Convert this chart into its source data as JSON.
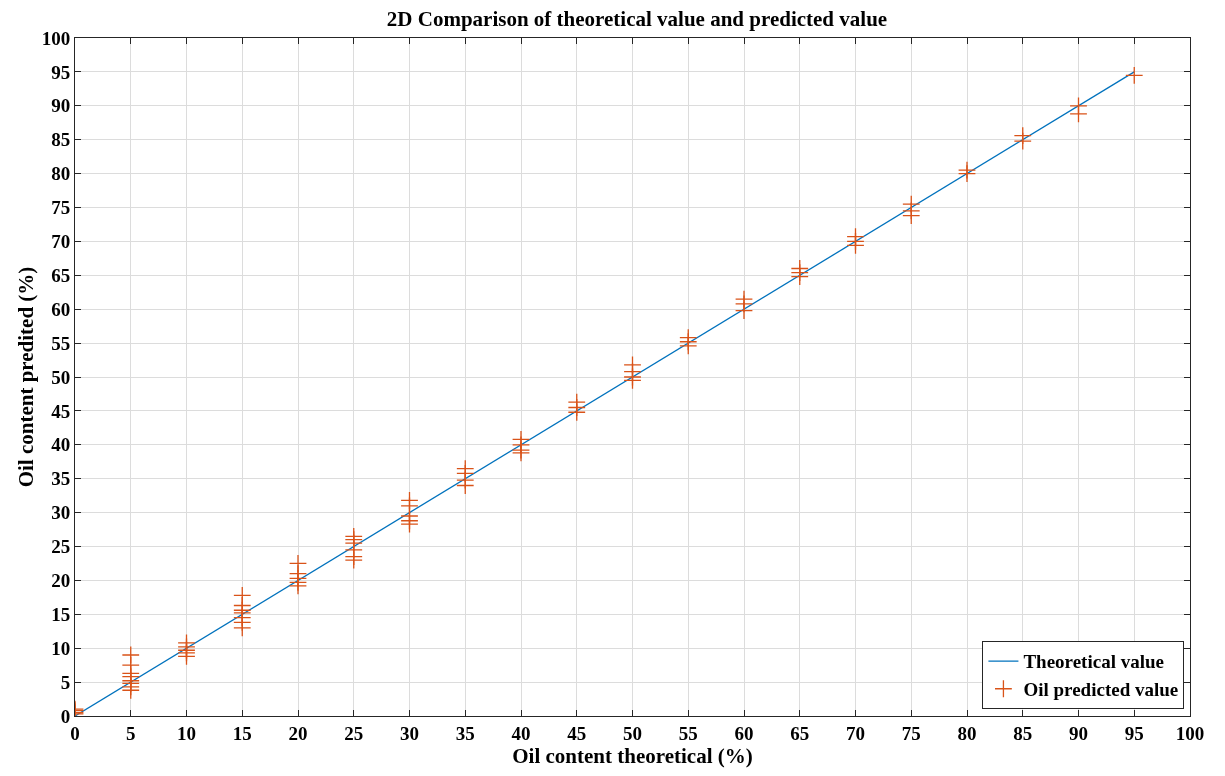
{
  "chart_data": {
    "type": "scatter",
    "title": "2D Comparison of theoretical value and predicted value",
    "xlabel": "Oil content theoretical (%)",
    "ylabel": "Oil content predited (%)",
    "xlim": [
      0,
      100
    ],
    "ylim": [
      0,
      100
    ],
    "xticks": [
      0,
      5,
      10,
      15,
      20,
      25,
      30,
      35,
      40,
      45,
      50,
      55,
      60,
      65,
      70,
      75,
      80,
      85,
      90,
      95,
      100
    ],
    "yticks": [
      0,
      5,
      10,
      15,
      20,
      25,
      30,
      35,
      40,
      45,
      50,
      55,
      60,
      65,
      70,
      75,
      80,
      85,
      90,
      95,
      100
    ],
    "grid": true,
    "legend": "bottom right",
    "series": [
      {
        "name": "Theoretical value",
        "type": "line",
        "color": "#0072bd",
        "marker": "none",
        "line_style": "solid",
        "x": [
          0,
          95
        ],
        "values": [
          0,
          95
        ]
      },
      {
        "name": "Oil predicted value",
        "color": "#d95319",
        "marker": "cross",
        "x": [
          0,
          0,
          0,
          0,
          5,
          5,
          5,
          5,
          5,
          5,
          5,
          5,
          10,
          10,
          10,
          10,
          10,
          15,
          15,
          15,
          15,
          15,
          15,
          15,
          20,
          20,
          20,
          20,
          20,
          25,
          25,
          25,
          25,
          25,
          25,
          30,
          30,
          30,
          30,
          30,
          35,
          35,
          35,
          35,
          40,
          40,
          40,
          40,
          45,
          45,
          45,
          50,
          50,
          50,
          50,
          55,
          55,
          55,
          60,
          60,
          60,
          65,
          65,
          65,
          70,
          70,
          70,
          75,
          75,
          75,
          80,
          80,
          85,
          85,
          90,
          90,
          95
        ],
        "values": [
          0.3,
          0.8,
          1.0,
          0.5,
          9.0,
          7.5,
          6.3,
          5.8,
          5.2,
          4.8,
          4.3,
          3.8,
          10.8,
          10.2,
          9.7,
          9.3,
          8.8,
          17.8,
          16.3,
          15.6,
          15.2,
          14.5,
          13.8,
          13.0,
          22.5,
          21.0,
          20.3,
          19.7,
          19.2,
          26.5,
          26.0,
          25.5,
          24.5,
          23.5,
          23.0,
          31.8,
          31.0,
          29.5,
          28.8,
          28.3,
          36.5,
          35.8,
          34.8,
          34.0,
          40.8,
          40.0,
          39.2,
          38.8,
          46.3,
          45.5,
          44.8,
          51.8,
          50.8,
          50.0,
          49.5,
          55.8,
          55.2,
          54.6,
          61.5,
          60.8,
          59.8,
          66.0,
          65.4,
          64.8,
          70.7,
          70.0,
          69.4,
          75.5,
          74.5,
          73.8,
          80.5,
          80.0,
          85.6,
          84.8,
          90.0,
          88.8,
          94.5
        ]
      }
    ]
  }
}
